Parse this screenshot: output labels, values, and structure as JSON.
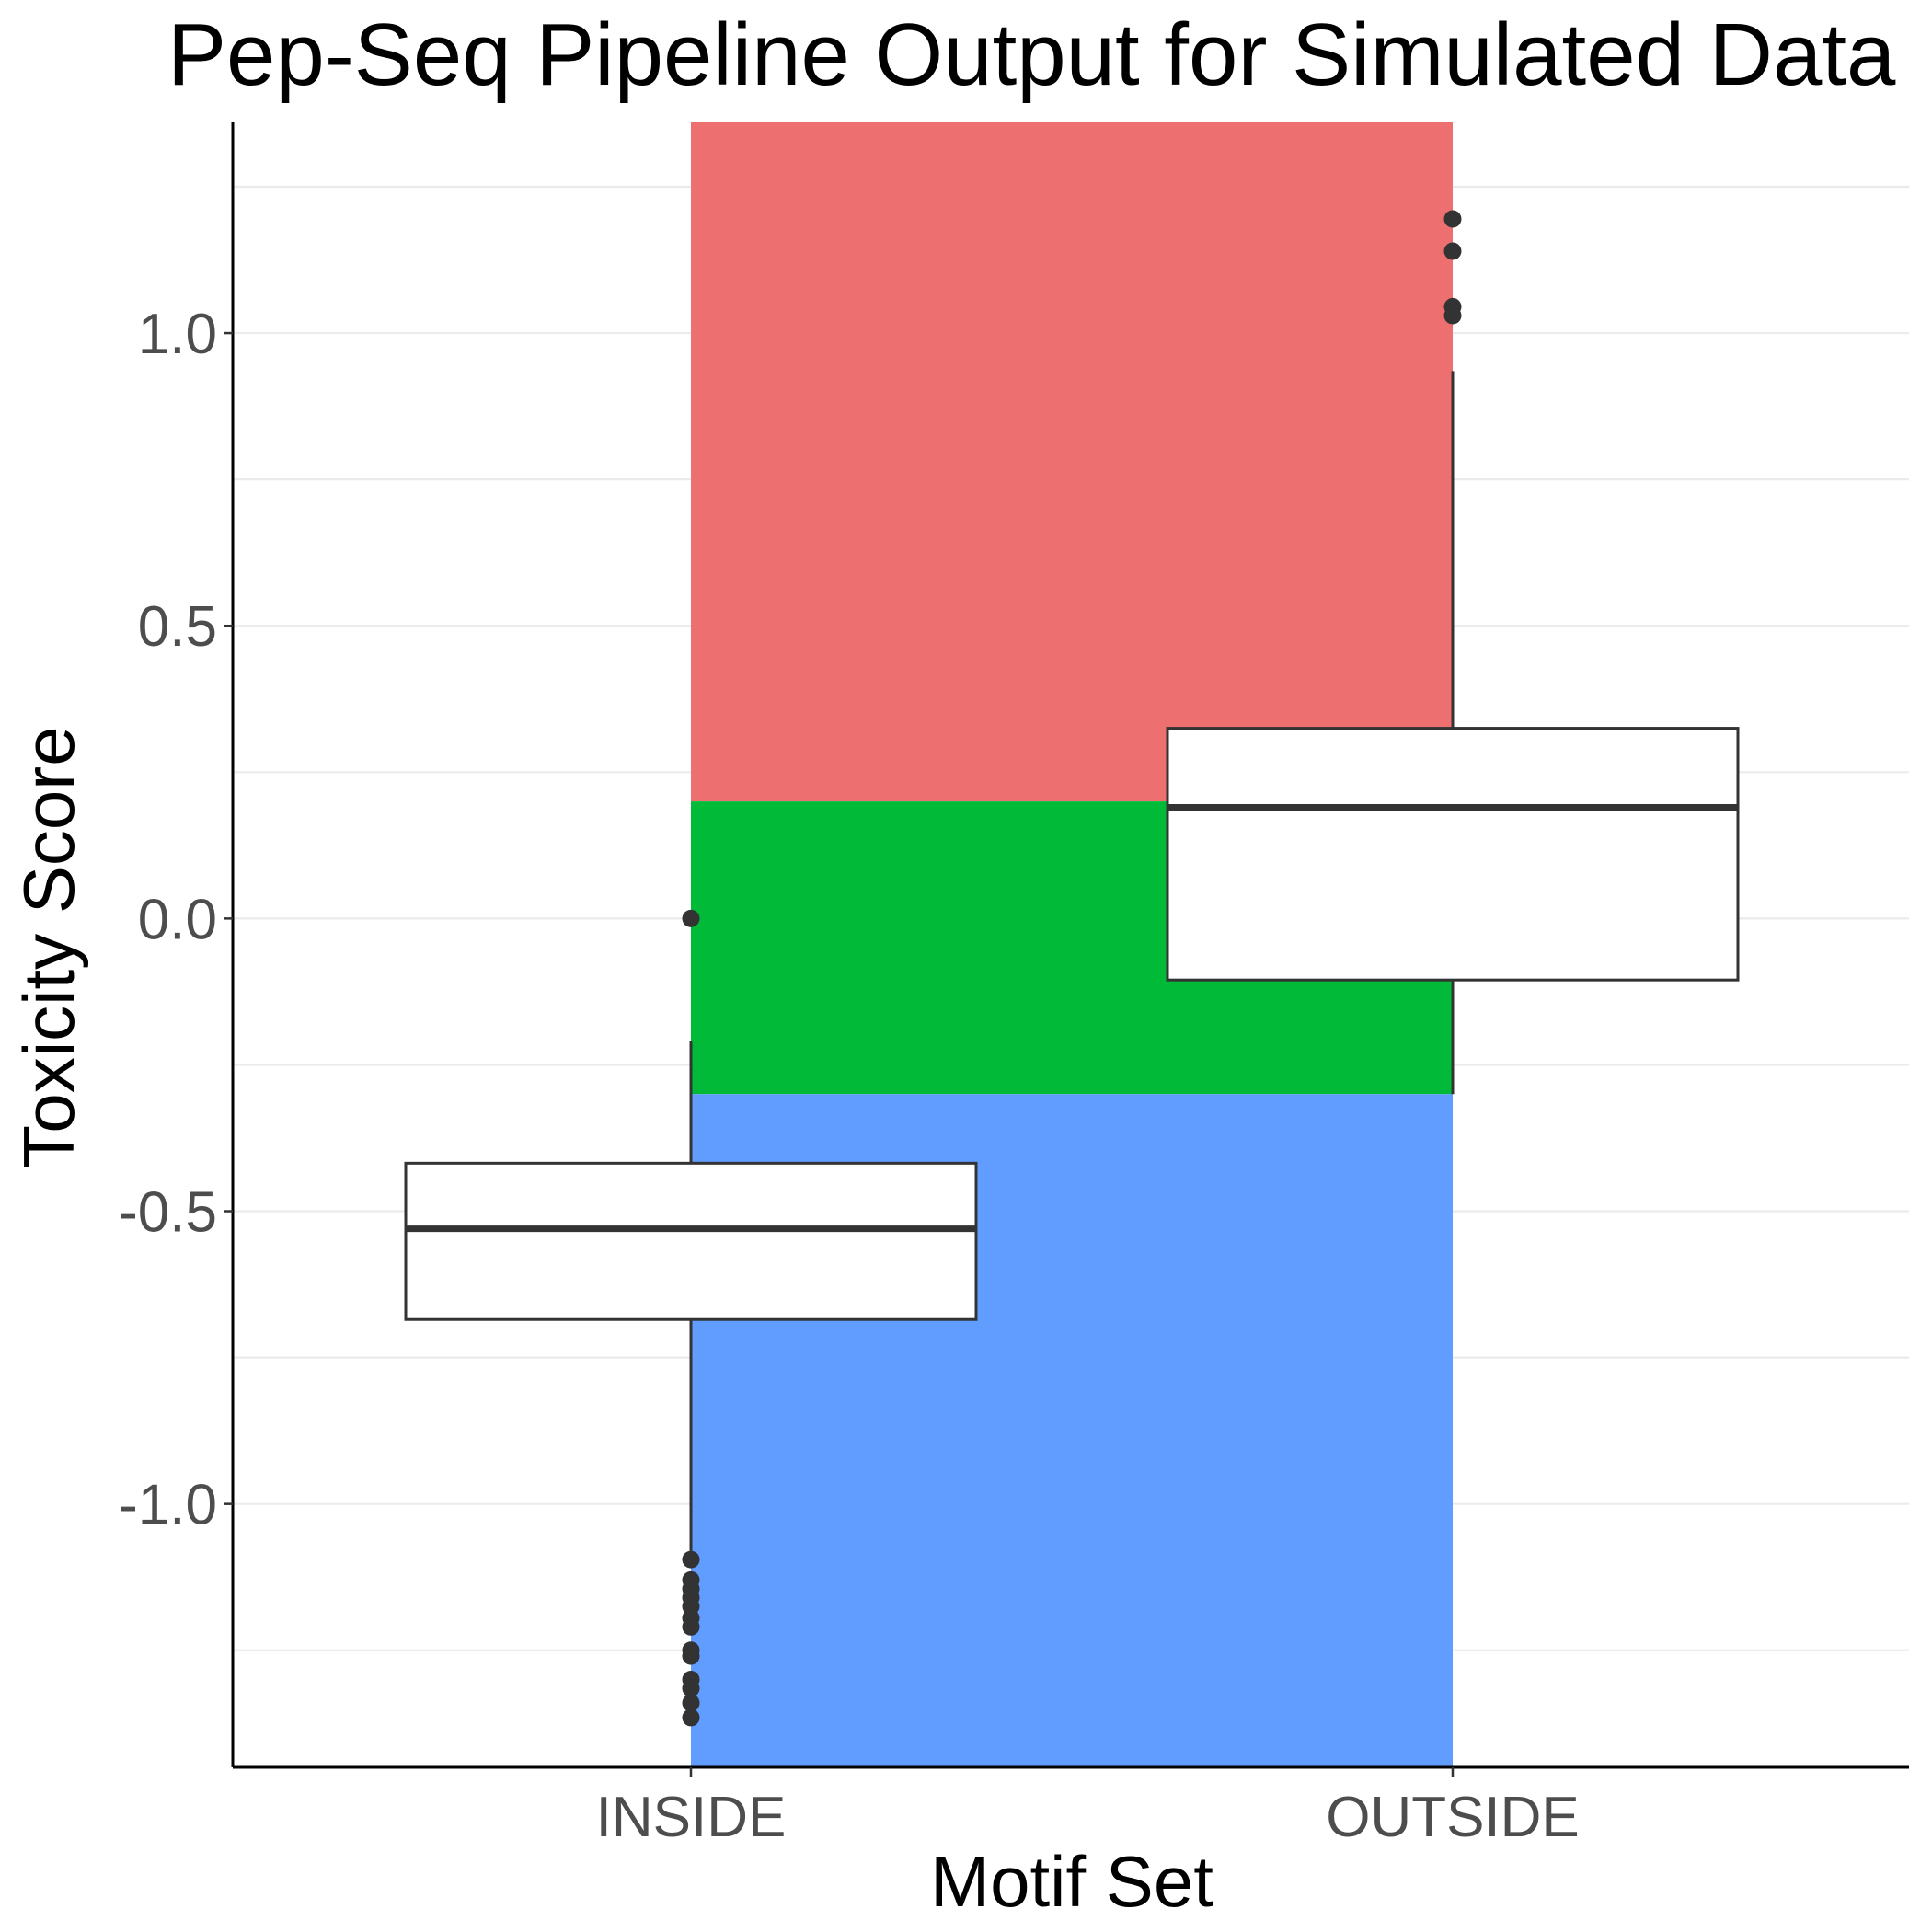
{
  "chart_data": {
    "type": "boxplot",
    "title": "Pep-Seq Pipeline Output for Simulated Data",
    "xlabel": "Motif Set",
    "ylabel": "Toxicity Score",
    "categories": [
      "INSIDE",
      "OUTSIDE"
    ],
    "ylim": [
      -1.45,
      1.36
    ],
    "y_ticks": [
      {
        "value": -1.0,
        "label": "-1.0"
      },
      {
        "value": -0.5,
        "label": "-0.5"
      },
      {
        "value": 0.0,
        "label": "0.0"
      },
      {
        "value": 0.5,
        "label": "0.5"
      },
      {
        "value": 1.0,
        "label": "1.0"
      }
    ],
    "y_minor_gridlines": [
      -1.25,
      -0.75,
      -0.25,
      0.25,
      0.75,
      1.25
    ],
    "grid": "horizontal",
    "background_bands": [
      {
        "category_start": "INSIDE",
        "category_end": "OUTSIDE",
        "y_from": 0.2,
        "y_to": 1.36,
        "color": "#EE6F6F"
      },
      {
        "category_start": "INSIDE",
        "category_end": "OUTSIDE",
        "y_from": -0.3,
        "y_to": 0.2,
        "color": "#00BA38"
      },
      {
        "category_start": "INSIDE",
        "category_end": "OUTSIDE",
        "y_from": -1.45,
        "y_to": -0.3,
        "color": "#619CFF"
      }
    ],
    "boxes": [
      {
        "category": "INSIDE",
        "q1": -0.685,
        "median": -0.53,
        "q3": -0.418,
        "whisker_low": -1.08,
        "whisker_high": -0.21,
        "outliers": [
          0.0,
          -1.095,
          -1.13,
          -1.145,
          -1.16,
          -1.175,
          -1.195,
          -1.21,
          -1.25,
          -1.26,
          -1.3,
          -1.315,
          -1.34,
          -1.365
        ]
      },
      {
        "category": "OUTSIDE",
        "q1": -0.105,
        "median": 0.19,
        "q3": 0.325,
        "whisker_low": -0.3,
        "whisker_high": 0.935,
        "outliers": [
          1.195,
          1.14,
          1.045,
          1.03
        ]
      }
    ],
    "colors": {
      "box_fill": "#ffffff",
      "box_stroke": "#333333",
      "outlier": "#333333",
      "gridline": "#ebebeb",
      "axis": "#000000"
    }
  }
}
